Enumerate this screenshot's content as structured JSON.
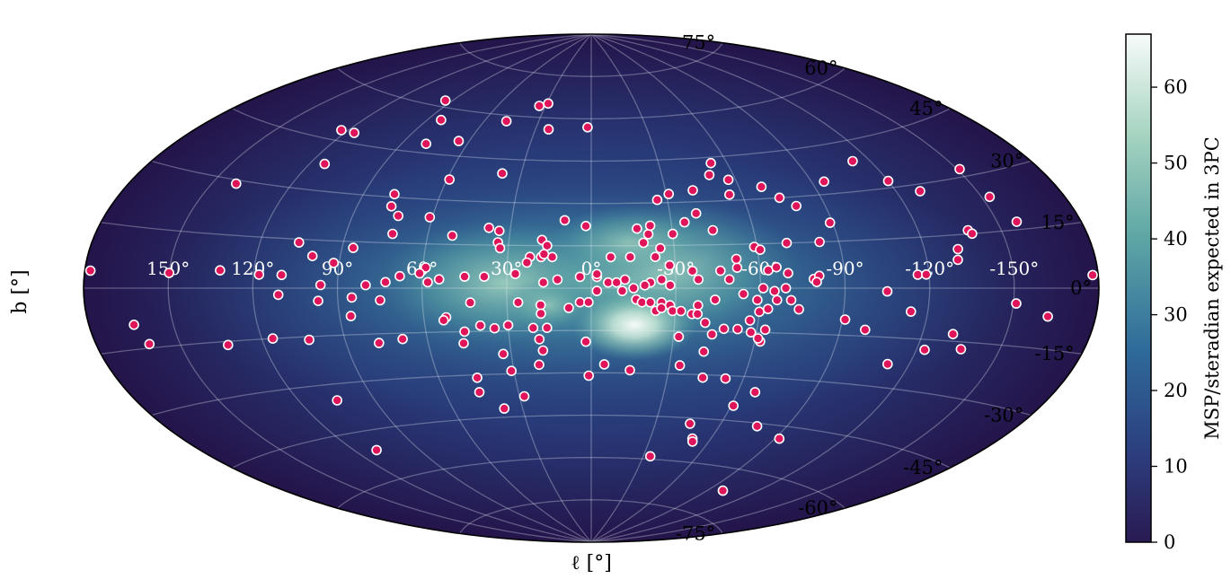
{
  "chart_data": {
    "type": "scatter",
    "projection": "aitoff",
    "title": "",
    "xlabel": "ℓ [°]",
    "ylabel": "b [°]",
    "xlim": [
      -180,
      180
    ],
    "ylim": [
      -90,
      90
    ],
    "grid": true,
    "longitude_ticks": [
      150,
      120,
      90,
      60,
      30,
      0,
      -30,
      -60,
      -90,
      -120,
      -150
    ],
    "longitude_tick_labels": [
      "150°",
      "120°",
      "90°",
      "60°",
      "30°",
      "0°",
      "-30°",
      "-60°",
      "-90°",
      "-120°",
      "-150°"
    ],
    "latitude_ticks": [
      75,
      60,
      45,
      30,
      15,
      0,
      -15,
      -30,
      -45,
      -60,
      -75
    ],
    "latitude_tick_labels": [
      "75°",
      "60°",
      "45°",
      "30°",
      "15°",
      "0°",
      "-15°",
      "-30°",
      "-45°",
      "-60°",
      "-75°"
    ],
    "background_map": {
      "type": "heatmap",
      "description_visible": "MSP density peaked at Galactic center and disk",
      "colormap": [
        "#2a1a52",
        "#2c3f7f",
        "#2f6b9a",
        "#5ea6a5",
        "#a5d3c0",
        "#f7fbfa"
      ]
    },
    "colorbar": {
      "label": "MSP/steradian expected in 3PC",
      "range": [
        0,
        67
      ],
      "ticks": [
        0,
        10,
        20,
        30,
        40,
        50,
        60
      ],
      "tick_labels": [
        "0",
        "10",
        "20",
        "30",
        "40",
        "50",
        "60"
      ]
    },
    "marker_color": "#e0145a",
    "series": [
      {
        "points": [
          [
            -29,
            65
          ],
          [
            -34,
            64
          ],
          [
            -48,
            58
          ],
          [
            -23,
            56
          ],
          [
            -2,
            57
          ],
          [
            -94,
            62
          ],
          [
            -65,
            50
          ],
          [
            -83,
            56
          ],
          [
            -79,
            48
          ],
          [
            -116,
            48
          ],
          [
            -123,
            48
          ],
          [
            -114,
            38
          ],
          [
            -141,
            29
          ],
          [
            -38,
            40
          ],
          [
            -59,
            37
          ],
          [
            -78,
            31
          ],
          [
            -77,
            27
          ],
          [
            -73,
            24
          ],
          [
            -61,
            24
          ],
          [
            -51,
            18
          ],
          [
            -38,
            21
          ],
          [
            -34,
            20
          ],
          [
            -18,
            17
          ],
          [
            -34,
            16
          ],
          [
            -33,
            14
          ],
          [
            -73,
            18
          ],
          [
            -86,
            13
          ],
          [
            -106,
            14
          ],
          [
            -92,
            8
          ],
          [
            -100,
            10
          ],
          [
            -118,
            4
          ],
          [
            -110,
            4
          ],
          [
            -132,
            5
          ],
          [
            -150,
            4
          ],
          [
            -178,
            4
          ],
          [
            -59,
            7
          ],
          [
            -61,
            5
          ],
          [
            -68,
            4
          ],
          [
            -54,
            3
          ],
          [
            -45,
            4
          ],
          [
            -38,
            4
          ],
          [
            -27,
            5
          ],
          [
            -58,
            2
          ],
          [
            -73,
            2
          ],
          [
            -80,
            1
          ],
          [
            -96,
            1
          ],
          [
            -85,
            -3
          ],
          [
            -97,
            -4
          ],
          [
            -111,
            -2
          ],
          [
            -75,
            -4
          ],
          [
            -86,
            -9
          ],
          [
            -26,
            -5
          ],
          [
            -18,
            -6
          ],
          [
            -43,
            -5
          ],
          [
            -52,
            -10
          ],
          [
            -40,
            -13
          ],
          [
            -53,
            -11
          ],
          [
            -35,
            -14
          ],
          [
            -30,
            -13
          ],
          [
            -21,
            -14
          ],
          [
            -16,
            -14
          ],
          [
            -19,
            -18
          ],
          [
            -46,
            -15
          ],
          [
            -47,
            -19
          ],
          [
            -69,
            -17
          ],
          [
            -78,
            -18
          ],
          [
            -103,
            -16
          ],
          [
            -116,
            -15
          ],
          [
            -133,
            -16
          ],
          [
            -161,
            -14
          ],
          [
            -164,
            -9
          ],
          [
            -18,
            -22
          ],
          [
            -33,
            -23
          ],
          [
            -2,
            -19
          ],
          [
            -20,
            -27
          ],
          [
            -31,
            -29
          ],
          [
            -45,
            -31
          ],
          [
            -105,
            -35
          ],
          [
            -28,
            -38
          ],
          [
            -46,
            -36
          ],
          [
            -38,
            -42
          ],
          [
            -110,
            -51
          ],
          [
            -14,
            11
          ],
          [
            -18,
            11
          ],
          [
            -22,
            11
          ],
          [
            -4,
            4
          ],
          [
            -12,
            3
          ],
          [
            -17,
            2
          ],
          [
            -4,
            -5
          ],
          [
            -8,
            -7
          ],
          [
            -18,
            -9
          ],
          [
            -1,
            -5
          ],
          [
            2,
            -1
          ],
          [
            6,
            2
          ],
          [
            9,
            2
          ],
          [
            12,
            3
          ],
          [
            2,
            4
          ],
          [
            21,
            2
          ],
          [
            25,
            3
          ],
          [
            19,
            1
          ],
          [
            15,
            0
          ],
          [
            11,
            -1
          ],
          [
            16,
            -4
          ],
          [
            18,
            -5
          ],
          [
            21,
            -5
          ],
          [
            25,
            -5
          ],
          [
            23,
            -8
          ],
          [
            28,
            -6
          ],
          [
            25,
            -7
          ],
          [
            29,
            -8
          ],
          [
            32,
            -8
          ],
          [
            38,
            -6
          ],
          [
            36,
            -9
          ],
          [
            44,
            -4
          ],
          [
            54,
            -2
          ],
          [
            59,
            -4
          ],
          [
            60,
            -8
          ],
          [
            63,
            -7
          ],
          [
            61,
            0
          ],
          [
            65,
            -1
          ],
          [
            69,
            0
          ],
          [
            71,
            -4
          ],
          [
            74,
            -7
          ],
          [
            66,
            -4
          ],
          [
            57,
            -11
          ],
          [
            53,
            -14
          ],
          [
            58,
            -15
          ],
          [
            62,
            -18
          ],
          [
            63,
            -14
          ],
          [
            61,
            -17
          ],
          [
            48,
            -14
          ],
          [
            44,
            -16
          ],
          [
            41,
            -12
          ],
          [
            38,
            -9
          ],
          [
            32,
            -17
          ],
          [
            42,
            -22
          ],
          [
            34,
            -27
          ],
          [
            44,
            -31
          ],
          [
            5,
            -27
          ],
          [
            -1,
            -31
          ],
          [
            15,
            -29
          ],
          [
            53,
            -31
          ],
          [
            67,
            -35
          ],
          [
            61,
            -40
          ],
          [
            77,
            -46
          ],
          [
            46,
            -47
          ],
          [
            51,
            -52
          ],
          [
            52,
            -53
          ],
          [
            34,
            -59
          ],
          [
            92,
            -49
          ],
          [
            100,
            -67
          ],
          [
            112,
            -23
          ],
          [
            91,
            -10
          ],
          [
            99,
            -13
          ],
          [
            123,
            -18
          ],
          [
            131,
            -13
          ],
          [
            136,
            -17
          ],
          [
            151,
            -4
          ],
          [
            163,
            -7
          ],
          [
            178,
            3
          ],
          [
            114,
            -7
          ],
          [
            105,
            -1
          ],
          [
            116,
            4
          ],
          [
            119,
            4
          ],
          [
            132,
            11
          ],
          [
            138,
            16
          ],
          [
            139,
            15
          ],
          [
            131,
            8
          ],
          [
            157,
            17
          ],
          [
            153,
            24
          ],
          [
            151,
            32
          ],
          [
            129,
            28
          ],
          [
            120,
            32
          ],
          [
            113,
            39
          ],
          [
            79,
            27
          ],
          [
            95,
            34
          ],
          [
            74,
            30
          ],
          [
            69,
            34
          ],
          [
            50,
            39
          ],
          [
            53,
            43
          ],
          [
            57,
            37
          ],
          [
            55,
            32
          ],
          [
            26,
            31
          ],
          [
            41,
            34
          ],
          [
            40,
            26
          ],
          [
            31,
            33
          ],
          [
            35,
            23
          ],
          [
            45,
            20
          ],
          [
            30,
            19
          ],
          [
            21,
            19
          ],
          [
            22,
            22
          ],
          [
            17,
            21
          ],
          [
            19,
            16
          ],
          [
            25,
            14
          ],
          [
            23,
            11
          ],
          [
            14,
            11
          ],
          [
            28,
            8
          ],
          [
            36,
            6
          ],
          [
            38,
            3
          ],
          [
            46,
            6
          ],
          [
            52,
            7
          ],
          [
            49,
            3
          ],
          [
            52,
            10
          ],
          [
            59,
            14
          ],
          [
            61,
            13
          ],
          [
            71,
            15
          ],
          [
            89,
            21
          ],
          [
            83,
            15
          ],
          [
            79,
            3
          ],
          [
            81,
            4
          ],
          [
            70,
            5
          ],
          [
            63,
            6
          ],
          [
            66,
            7
          ],
          [
            80,
            2
          ],
          [
            -17,
            12
          ],
          [
            -23,
            9
          ],
          [
            2,
            5
          ],
          [
            7,
            11
          ],
          [
            28,
            1
          ],
          [
            -2,
            22
          ],
          [
            -10,
            24
          ],
          [
            -16,
            15
          ]
        ]
      }
    ]
  }
}
